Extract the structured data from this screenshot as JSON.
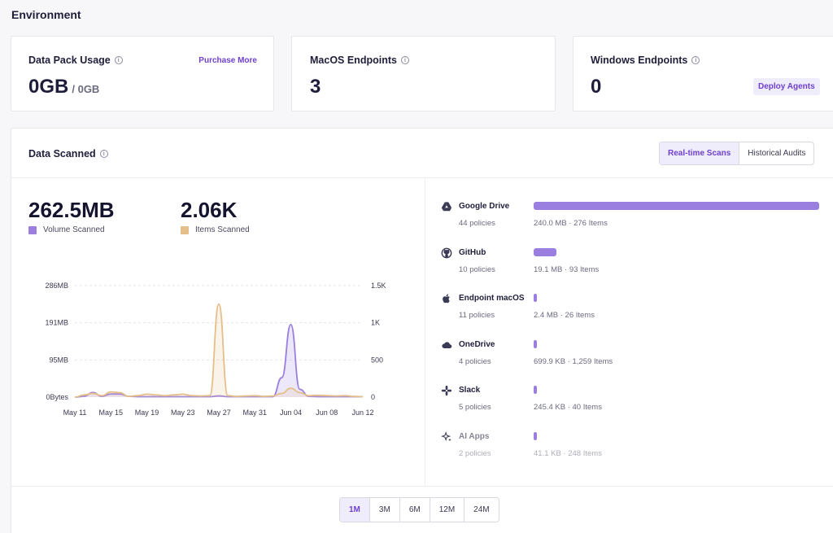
{
  "page_title": "Environment",
  "cards": {
    "data_pack": {
      "title": "Data Pack Usage",
      "value": "0GB",
      "total": "/ 0GB",
      "link": "Purchase More"
    },
    "macos": {
      "title": "MacOS Endpoints",
      "value": "3"
    },
    "windows": {
      "title": "Windows Endpoints",
      "value": "0",
      "button": "Deploy Agents"
    }
  },
  "scanned": {
    "title": "Data Scanned",
    "tabs": [
      "Real-time Scans",
      "Historical Audits"
    ],
    "active_tab": "Real-time Scans",
    "volume_value": "262.5MB",
    "volume_label": "Volume Scanned",
    "items_value": "2.06K",
    "items_label": "Items Scanned"
  },
  "colors": {
    "volume": "#9b7fe0",
    "items": "#e4bf8a",
    "accent": "#6e3fd1"
  },
  "chart_data": {
    "type": "line",
    "x_ticks": [
      "May 11",
      "May 15",
      "May 19",
      "May 23",
      "May 27",
      "May 31",
      "Jun 04",
      "Jun 08",
      "Jun 12"
    ],
    "y_left_ticks": [
      "286MB",
      "191MB",
      "95MB",
      "0Bytes"
    ],
    "y_right_ticks": [
      "1.5K",
      "1K",
      "500",
      "0"
    ],
    "y_left_range_mb": [
      0,
      286
    ],
    "y_right_range": [
      0,
      1500
    ],
    "x": [
      "May 11",
      "May 12",
      "May 13",
      "May 14",
      "May 15",
      "May 16",
      "May 17",
      "May 18",
      "May 19",
      "May 20",
      "May 21",
      "May 22",
      "May 23",
      "May 24",
      "May 25",
      "May 26",
      "May 27",
      "May 28",
      "May 29",
      "May 30",
      "May 31",
      "Jun 01",
      "Jun 02",
      "Jun 03",
      "Jun 04",
      "Jun 05",
      "Jun 06",
      "Jun 07",
      "Jun 08",
      "Jun 09",
      "Jun 10",
      "Jun 11",
      "Jun 12"
    ],
    "series": [
      {
        "name": "Volume Scanned",
        "axis": "left",
        "values": [
          0,
          2,
          12,
          2,
          8,
          8,
          2,
          1,
          1,
          1,
          1,
          1,
          1,
          1,
          1,
          1,
          3,
          1,
          1,
          1,
          1,
          1,
          1,
          50,
          186,
          20,
          2,
          1,
          1,
          1,
          1,
          1,
          1
        ]
      },
      {
        "name": "Items Scanned",
        "axis": "right",
        "values": [
          0,
          30,
          50,
          20,
          70,
          60,
          10,
          20,
          40,
          30,
          20,
          30,
          40,
          20,
          15,
          20,
          1250,
          20,
          10,
          15,
          20,
          10,
          15,
          50,
          120,
          60,
          20,
          25,
          20,
          15,
          20,
          10,
          5
        ]
      }
    ],
    "grid": true,
    "legend": "top-left"
  },
  "sources": [
    {
      "name": "Google Drive",
      "policies": "44 policies",
      "size": "240.0 MB · 276 Items",
      "volume_mb": 240.0,
      "icon": "google-drive-icon"
    },
    {
      "name": "GitHub",
      "policies": "10 policies",
      "size": "19.1 MB · 93 Items",
      "volume_mb": 19.1,
      "icon": "github-icon"
    },
    {
      "name": "Endpoint macOS",
      "policies": "11 policies",
      "size": "2.4 MB · 26 Items",
      "volume_mb": 2.4,
      "icon": "apple-icon"
    },
    {
      "name": "OneDrive",
      "policies": "4 policies",
      "size": "699.9 KB · 1,259 Items",
      "volume_mb": 0.7,
      "icon": "cloud-icon"
    },
    {
      "name": "Slack",
      "policies": "5 policies",
      "size": "245.4 KB · 40 Items",
      "volume_mb": 0.25,
      "icon": "slack-icon"
    },
    {
      "name": "AI Apps",
      "policies": "2 policies",
      "size": "41.1 KB · 248 Items",
      "volume_mb": 0.04,
      "icon": "sparkle-icon"
    }
  ],
  "ranges": [
    "1M",
    "3M",
    "6M",
    "12M",
    "24M"
  ],
  "active_range": "1M"
}
